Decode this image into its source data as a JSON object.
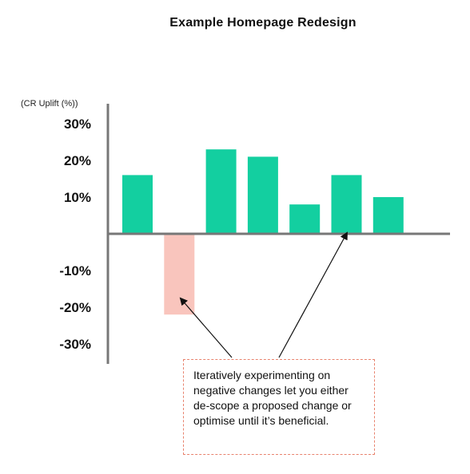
{
  "chart_data": {
    "type": "bar",
    "title": "Example Homepage Redesign",
    "ylabel": "(CR Uplift (%))",
    "xlabel": "",
    "ylim": [
      -35,
      35
    ],
    "yticks": [
      30,
      20,
      10,
      -10,
      -20,
      -30
    ],
    "ytick_labels": [
      "30%",
      "20%",
      "10%",
      "-10%",
      "-20%",
      "-30%"
    ],
    "values": [
      16,
      -22,
      23,
      21,
      8,
      16,
      10
    ],
    "colors": {
      "positive": "#13cfa0",
      "negative": "#f9c5bd",
      "axis": "#777777",
      "arrow": "#111111",
      "annotation_border": "#e8836e"
    },
    "grid": false,
    "legend": "none",
    "annotation": {
      "text": "Iteratively experimenting on negative changes let you either de-scope a proposed change or optimise until it’s beneficial."
    }
  }
}
